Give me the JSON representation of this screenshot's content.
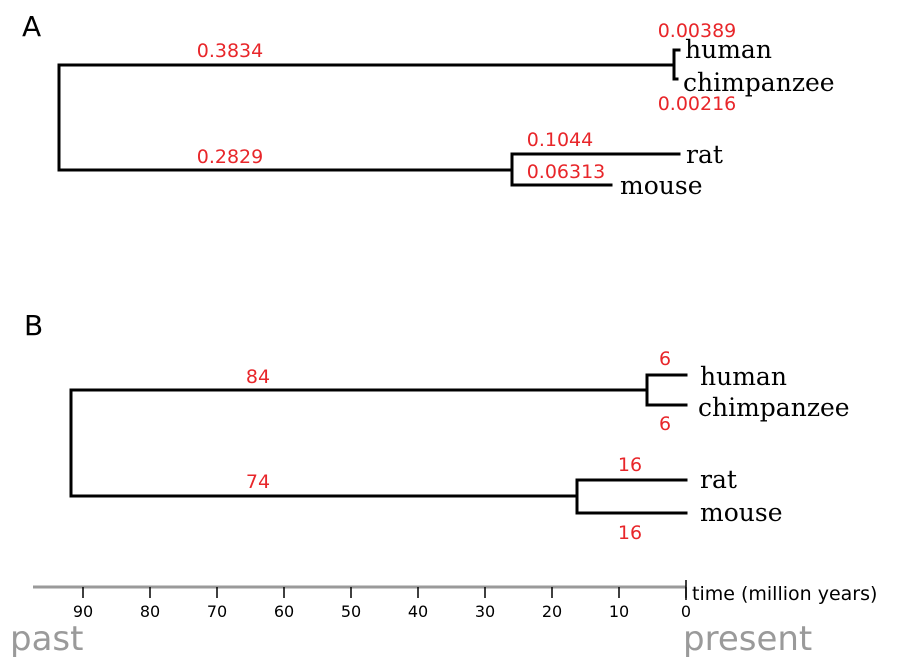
{
  "panels": {
    "a": {
      "letter": "A",
      "taxa": [
        "human",
        "chimpanzee",
        "rat",
        "mouse"
      ],
      "branch_labels": {
        "primates": "0.3834",
        "rodents": "0.2829",
        "human": "0.00389",
        "chimpanzee": "0.00216",
        "rat": "0.1044",
        "mouse": "0.06313"
      }
    },
    "b": {
      "letter": "B",
      "taxa": [
        "human",
        "chimpanzee",
        "rat",
        "mouse"
      ],
      "branch_labels": {
        "primates": "84",
        "rodents": "74",
        "human": "6",
        "chimpanzee": "6",
        "rat": "16",
        "mouse": "16"
      }
    }
  },
  "axis": {
    "title": "time (million years)",
    "ticks": [
      "90",
      "80",
      "70",
      "60",
      "50",
      "40",
      "30",
      "20",
      "10",
      "0"
    ],
    "past_label": "past",
    "present_label": "present"
  },
  "colors": {
    "branch": "#000000",
    "branch_label": "#e8262a",
    "axis": "#9a9a9a"
  }
}
